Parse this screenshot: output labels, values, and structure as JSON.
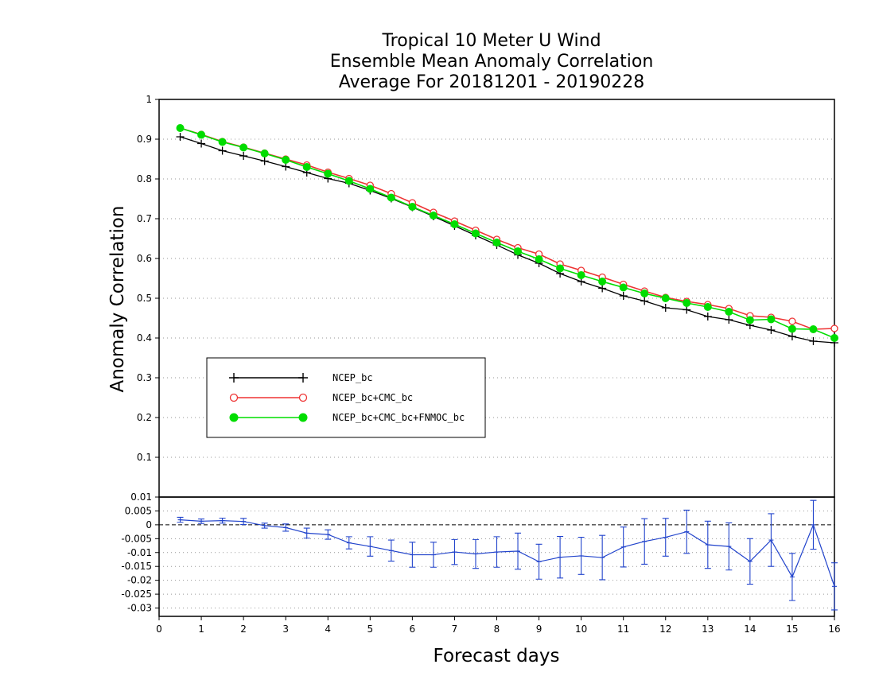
{
  "chart_data": [
    {
      "type": "line",
      "panel": "main",
      "title": [
        "Tropical 10 Meter U Wind",
        "Ensemble Mean Anomaly Correlation",
        "Average For 20181201 - 20190228"
      ],
      "xlabel": "Forecast days",
      "ylabel": "Anomaly Correlation",
      "xlim": [
        0,
        16
      ],
      "ylim": [
        0,
        1
      ],
      "grid": "horizontal dotted",
      "legend_position": "lower-left",
      "x": [
        0.5,
        1,
        1.5,
        2,
        2.5,
        3,
        3.5,
        4,
        4.5,
        5,
        5.5,
        6,
        6.5,
        7,
        7.5,
        8,
        8.5,
        9,
        9.5,
        10,
        10.5,
        11,
        11.5,
        12,
        12.5,
        13,
        13.5,
        14,
        14.5,
        15,
        15.5,
        16
      ],
      "series": [
        {
          "name": "NCEP_bc",
          "color": "#000000",
          "marker": "plus",
          "values": [
            0.906,
            0.889,
            0.871,
            0.858,
            0.845,
            0.831,
            0.816,
            0.801,
            0.789,
            0.771,
            0.751,
            0.729,
            0.706,
            0.682,
            0.658,
            0.634,
            0.609,
            0.588,
            0.562,
            0.542,
            0.525,
            0.506,
            0.493,
            0.476,
            0.471,
            0.454,
            0.446,
            0.432,
            0.42,
            0.404,
            0.392,
            0.388
          ]
        },
        {
          "name": "NCEP_bc+CMC_bc",
          "color": "#ee3333",
          "marker": "open-circle",
          "values": [
            0.928,
            0.912,
            0.894,
            0.88,
            0.865,
            0.85,
            0.835,
            0.817,
            0.801,
            0.784,
            0.763,
            0.74,
            0.716,
            0.694,
            0.671,
            0.648,
            0.627,
            0.611,
            0.586,
            0.57,
            0.553,
            0.535,
            0.518,
            0.502,
            0.492,
            0.484,
            0.474,
            0.456,
            0.452,
            0.442,
            0.422,
            0.424
          ]
        },
        {
          "name": "NCEP_bc+CMC_bc+FNMOC_bc",
          "color": "#00dd00",
          "marker": "filled-circle",
          "values": [
            0.928,
            0.911,
            0.893,
            0.879,
            0.864,
            0.848,
            0.83,
            0.813,
            0.795,
            0.775,
            0.753,
            0.73,
            0.708,
            0.686,
            0.663,
            0.64,
            0.618,
            0.598,
            0.575,
            0.558,
            0.542,
            0.527,
            0.512,
            0.5,
            0.488,
            0.478,
            0.466,
            0.445,
            0.447,
            0.423,
            0.422,
            0.4
          ]
        }
      ]
    },
    {
      "type": "line",
      "panel": "difference",
      "xlim": [
        0,
        16
      ],
      "ylim": [
        -0.033,
        0.01
      ],
      "xticks": [
        0,
        1,
        2,
        3,
        4,
        5,
        6,
        7,
        8,
        9,
        10,
        11,
        12,
        13,
        14,
        15,
        16
      ],
      "yticks": [
        0.01,
        0.005,
        0,
        -0.005,
        -0.01,
        -0.015,
        -0.02,
        -0.025,
        -0.03
      ],
      "ytick_labels": [
        "0.01",
        "0.005",
        "0",
        "-0.005",
        "-0.01",
        "-0.015",
        "-0.02",
        "-0.025",
        "-0.03"
      ],
      "grid": "horizontal dotted",
      "zero_line": "dashed",
      "x": [
        0.5,
        1,
        1.5,
        2,
        2.5,
        3,
        3.5,
        4,
        4.5,
        5,
        5.5,
        6,
        6.5,
        7,
        7.5,
        8,
        8.5,
        9,
        9.5,
        10,
        10.5,
        11,
        11.5,
        12,
        12.5,
        13,
        13.5,
        14,
        14.5,
        15,
        15.5,
        16
      ],
      "series": [
        {
          "color": "#2244cc",
          "values": [
            0.0018,
            0.0013,
            0.0015,
            0.0012,
            -0.0003,
            -0.001,
            -0.003,
            -0.0035,
            -0.0065,
            -0.0078,
            -0.0093,
            -0.0108,
            -0.0108,
            -0.0098,
            -0.0105,
            -0.0098,
            -0.0095,
            -0.0133,
            -0.0117,
            -0.0112,
            -0.0118,
            -0.008,
            -0.006,
            -0.0045,
            -0.0025,
            -0.0072,
            -0.0078,
            -0.0132,
            -0.0055,
            -0.0188,
            0.0,
            -0.0222
          ],
          "error": [
            0.0009,
            0.0008,
            0.0009,
            0.0011,
            0.0009,
            0.0013,
            0.0018,
            0.0017,
            0.0022,
            0.0035,
            0.0038,
            0.0045,
            0.0045,
            0.0045,
            0.0052,
            0.0055,
            0.0065,
            0.0063,
            0.0075,
            0.0067,
            0.008,
            0.0072,
            0.0082,
            0.0068,
            0.0078,
            0.0085,
            0.0085,
            0.0082,
            0.0095,
            0.0085,
            0.0088,
            0.0085
          ]
        }
      ]
    }
  ],
  "main_yticks": [
    "0.1",
    "0.2",
    "0.3",
    "0.4",
    "0.5",
    "0.6",
    "0.7",
    "0.8",
    "0.9",
    "1"
  ]
}
